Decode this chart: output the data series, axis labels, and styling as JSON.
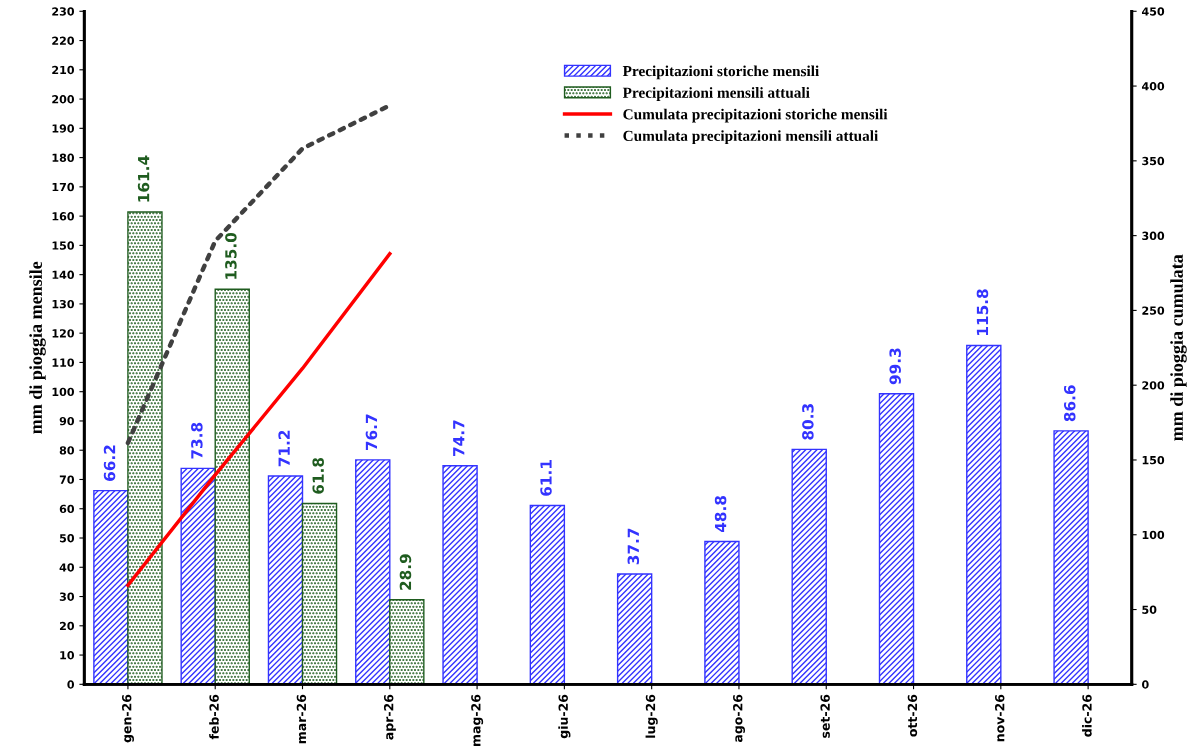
{
  "chart_data": {
    "type": "bar",
    "categories": [
      "gen-26",
      "feb-26",
      "mar-26",
      "apr-26",
      "mag-26",
      "giu-26",
      "lug-26",
      "ago-26",
      "set-26",
      "ott-26",
      "nov-26",
      "dic-26"
    ],
    "ylabel": "mm di pioggia mensile",
    "y2label": "mm di pioggia cumulata",
    "ylim": [
      0,
      230
    ],
    "yticks": [
      0,
      10,
      20,
      30,
      40,
      50,
      60,
      70,
      80,
      90,
      100,
      110,
      120,
      130,
      140,
      150,
      160,
      170,
      180,
      190,
      200,
      210,
      220,
      230
    ],
    "y2lim": [
      0,
      450
    ],
    "y2ticks": [
      0,
      50,
      100,
      150,
      200,
      250,
      300,
      350,
      400,
      450
    ],
    "grid": false,
    "legend": "top right",
    "series": [
      {
        "name": "Precipitazioni storiche mensili",
        "color": "#3333ff",
        "values": [
          66.2,
          73.8,
          71.2,
          76.7,
          74.7,
          61.1,
          37.7,
          48.8,
          80.3,
          99.3,
          115.8,
          86.6
        ],
        "value_labels": [
          "66.2",
          "73.8",
          "71.2",
          "76.7",
          "74.7",
          "61.1",
          "37.7",
          "48.8",
          "80.3",
          "99.3",
          "115.8",
          "86.6"
        ]
      },
      {
        "name": "Precipitazioni mensili attuali",
        "color": "#1f5c1f",
        "values": [
          161.4,
          135.0,
          61.8,
          28.9,
          null,
          null,
          null,
          null,
          null,
          null,
          null,
          null
        ],
        "value_labels": [
          "161.4",
          "135.0",
          "61.8",
          "28.9",
          null,
          null,
          null,
          null,
          null,
          null,
          null,
          null
        ]
      },
      {
        "name": "Cumulata precipitazioni storiche mensili",
        "type": "line",
        "axis": "y2",
        "color": "#ff0000",
        "line_style": "solid",
        "values": [
          66.2,
          140.0,
          211.2,
          287.9,
          null,
          null,
          null,
          null,
          null,
          null,
          null,
          null
        ]
      },
      {
        "name": "Cumulata precipitazioni mensili attuali",
        "type": "line",
        "axis": "y2",
        "color": "#404040",
        "line_style": "dotted",
        "values": [
          161.4,
          296.4,
          358.2,
          387.1,
          null,
          null,
          null,
          null,
          null,
          null,
          null,
          null
        ]
      }
    ]
  }
}
